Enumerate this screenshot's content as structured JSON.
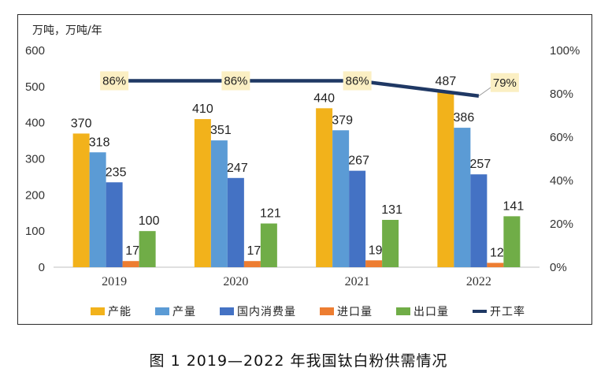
{
  "caption": "图 1  2019—2022 年我国钛白粉供需情况",
  "chart_data": {
    "type": "bar",
    "y_unit_label": "万吨，万吨/年",
    "categories": [
      "2019",
      "2020",
      "2021",
      "2022"
    ],
    "y_left": {
      "range": [
        0,
        600
      ],
      "ticks": [
        "0",
        "100",
        "200",
        "300",
        "400",
        "500",
        "600"
      ]
    },
    "y_right": {
      "range": [
        0,
        100
      ],
      "ticks": [
        "0%",
        "20%",
        "40%",
        "60%",
        "80%",
        "100%"
      ]
    },
    "series": [
      {
        "name": "产能",
        "color": "#F2B21B",
        "values": [
          370,
          410,
          440,
          487
        ]
      },
      {
        "name": "产量",
        "color": "#5B9BD5",
        "values": [
          318,
          351,
          379,
          386
        ]
      },
      {
        "name": "国内消费量",
        "color": "#4472C4",
        "values": [
          235,
          247,
          267,
          257
        ]
      },
      {
        "name": "进口量",
        "color": "#ED7D31",
        "values": [
          17,
          17,
          19,
          12
        ]
      },
      {
        "name": "出口量",
        "color": "#70AD47",
        "values": [
          100,
          121,
          131,
          141
        ]
      }
    ],
    "line_series": {
      "name": "开工率",
      "color": "#1F3864",
      "axis": "right",
      "values": [
        86,
        86,
        86,
        79
      ],
      "labels": [
        "86%",
        "86%",
        "86%",
        "79%"
      ]
    },
    "legend_position": "bottom",
    "grid": false
  }
}
